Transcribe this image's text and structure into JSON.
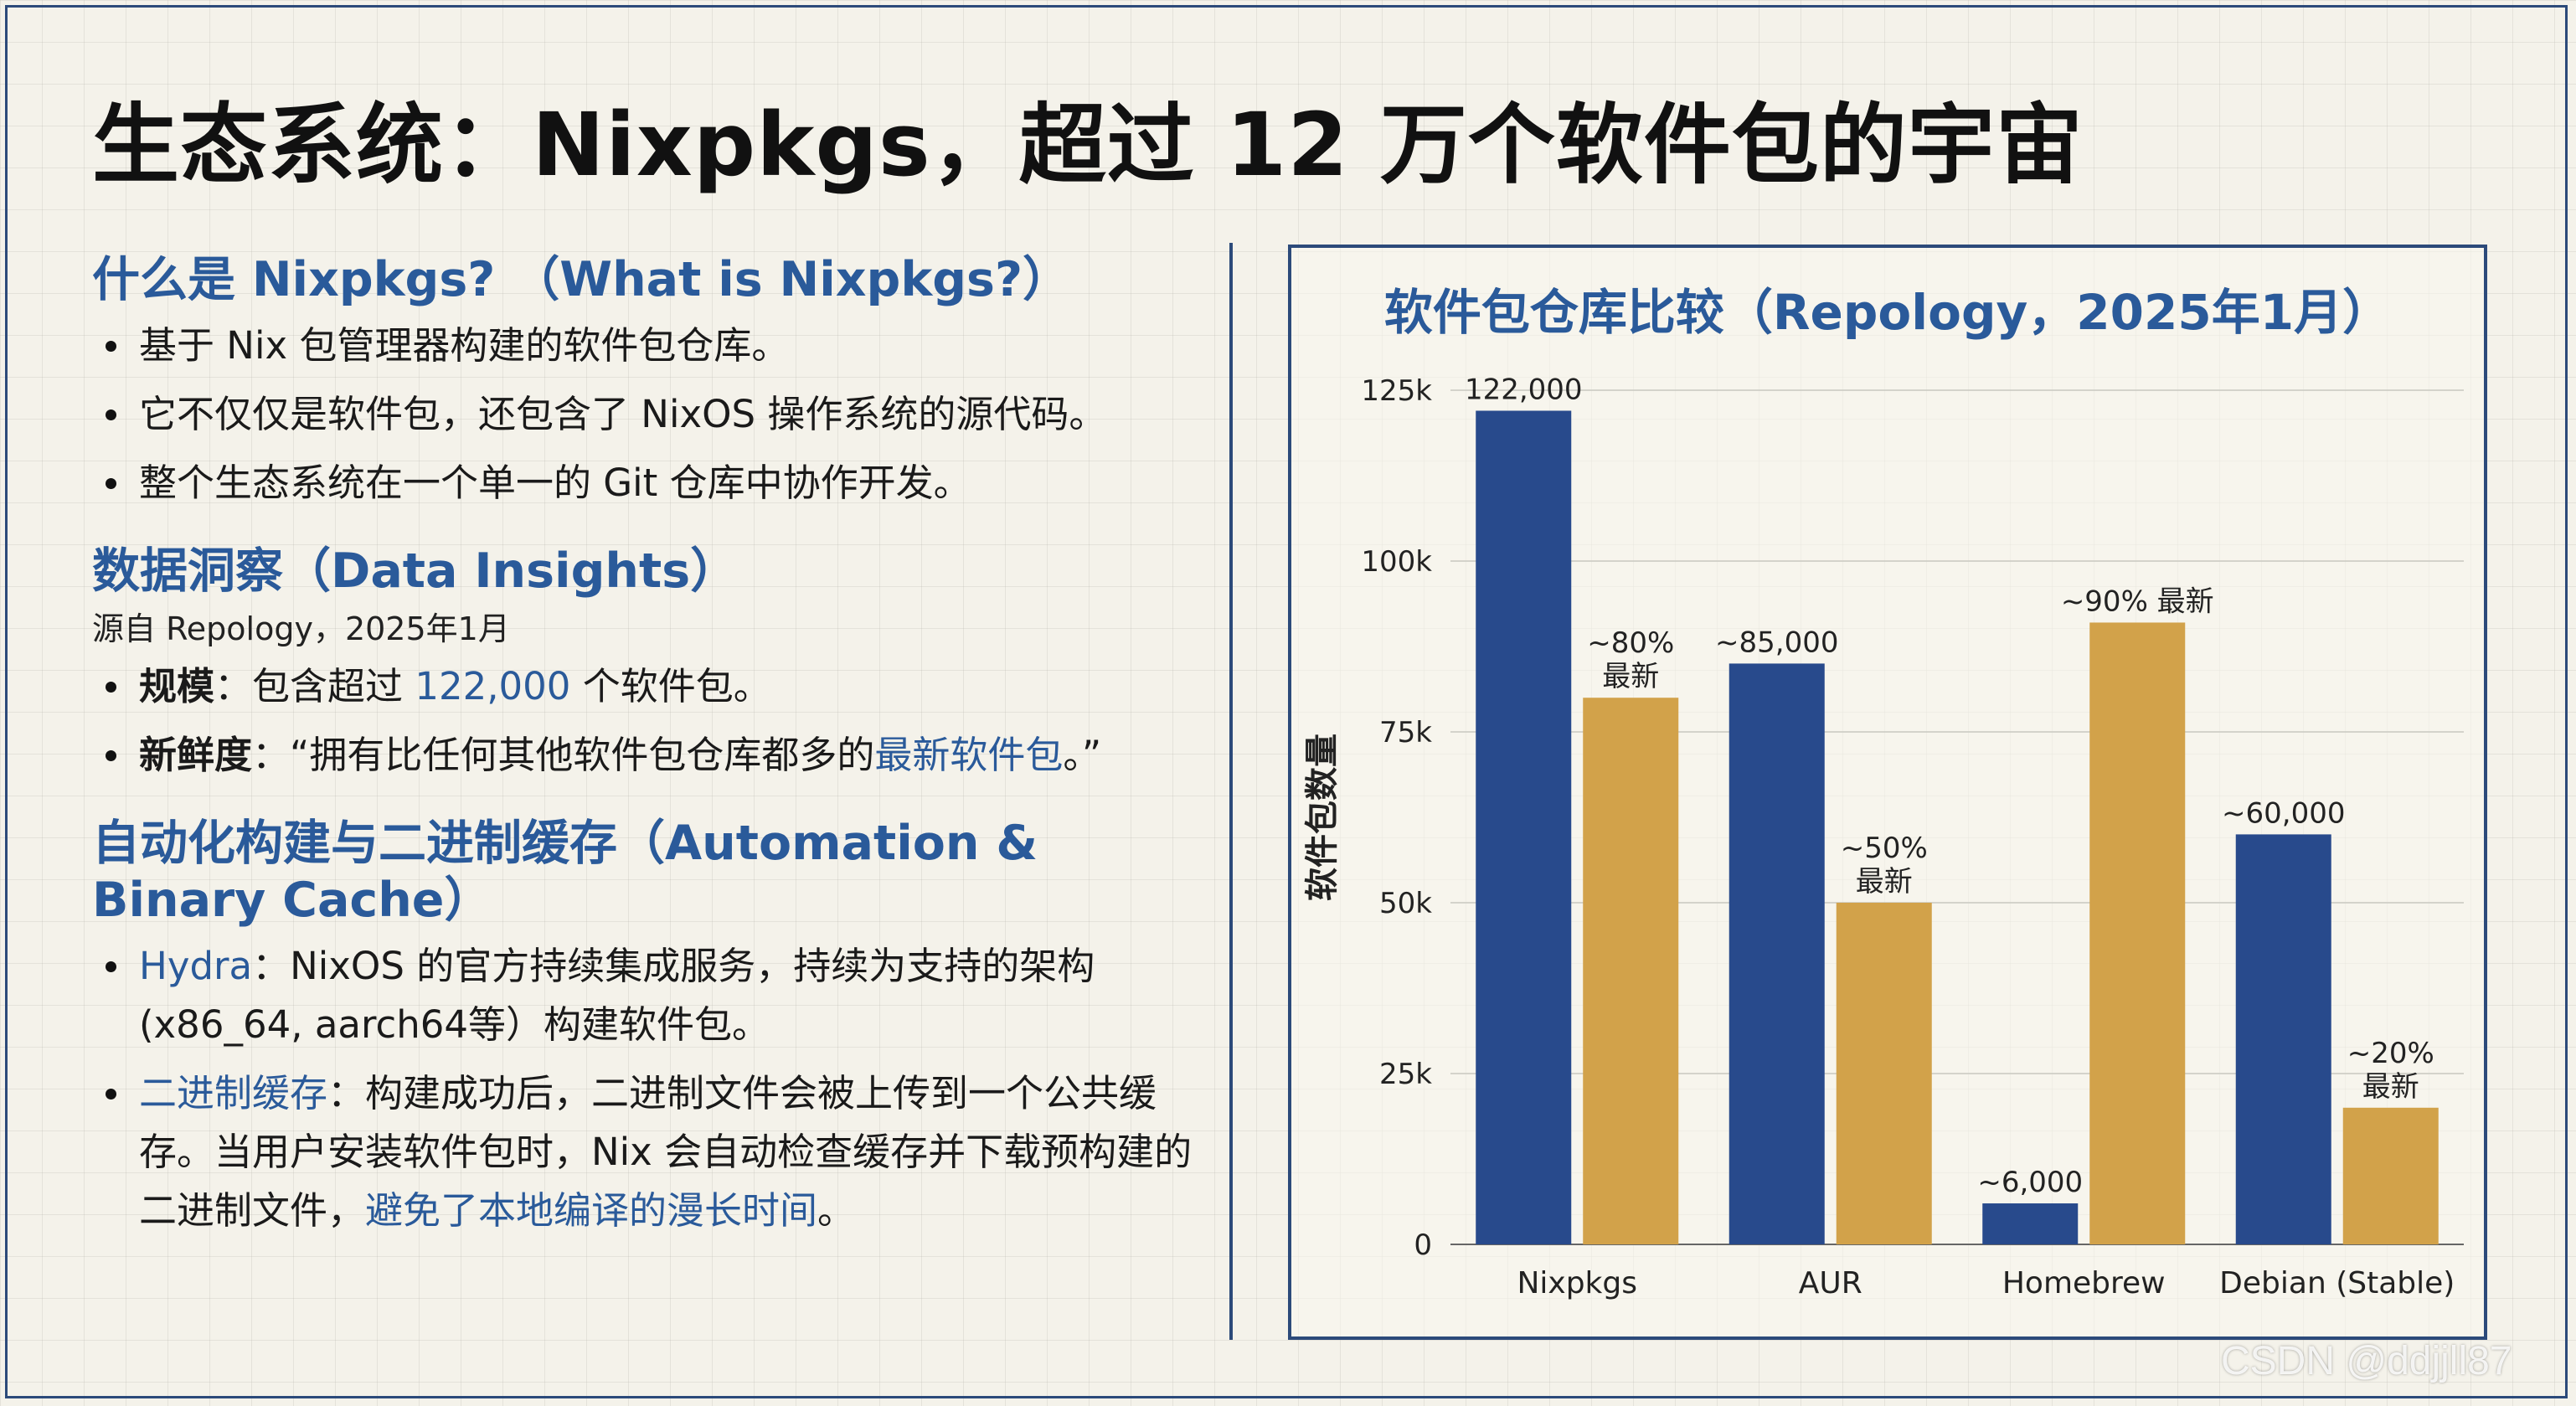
{
  "main_title": "生态系统：Nixpkgs，超过 12 万个软件包的宇宙",
  "sections": {
    "what": {
      "heading": "什么是 Nixpkgs? （What is Nixpkgs?）",
      "bullets": [
        "基于 Nix 包管理器构建的软件包仓库。",
        "它不仅仅是软件包，还包含了 NixOS 操作系统的源代码。",
        "整个生态系统在一个单一的 Git 仓库中协作开发。"
      ]
    },
    "insights": {
      "heading": "数据洞察（Data Insights）",
      "source": "源自 Repology，2025年1月",
      "scale_label": "规模",
      "scale_pre": "：包含超过 ",
      "scale_value": "122,000",
      "scale_post": " 个软件包。",
      "fresh_label": "新鲜度",
      "fresh_pre": "：“拥有比任何其他软件包仓库都多的",
      "fresh_highlight": "最新软件包",
      "fresh_post": "。”"
    },
    "automation": {
      "heading": "自动化构建与二进制缓存（Automation & Binary Cache）",
      "hydra_label": "Hydra",
      "hydra_text": "：NixOS 的官方持续集成服务，持续为支持的架构(x86_64, aarch64等）构建软件包。",
      "cache_label": "二进制缓存",
      "cache_text": "：构建成功后，二进制文件会被上传到一个公共缓存。当用户安装软件包时，Nix 会自动检查缓存并下载预构建的二进制文件，",
      "cache_highlight": "避免了本地编译的漫长时间",
      "cache_end": "。"
    }
  },
  "colors": {
    "accent": "#2a5a9a",
    "bar_blue": "#284a8c",
    "bar_gold": "#d2a24a",
    "frame": "#2c4a7a"
  },
  "chart_data": {
    "type": "bar",
    "title": "软件包仓库比较（Repology，2025年1月）",
    "ylabel": "软件包数量",
    "xlabel": "",
    "categories": [
      "Nixpkgs",
      "AUR",
      "Homebrew",
      "Debian (Stable)"
    ],
    "ylim": [
      0,
      125000
    ],
    "y_ticks": [
      0,
      25000,
      50000,
      75000,
      100000,
      125000
    ],
    "y_tick_labels": [
      "0",
      "25k",
      "50k",
      "75k",
      "100k",
      "125k"
    ],
    "grid": true,
    "series": [
      {
        "values": [
          122000,
          85000,
          6000,
          60000
        ],
        "labels": [
          "122,000",
          "~85,000",
          "~6,000",
          "~60,000"
        ]
      },
      {
        "values": [
          80000,
          50000,
          91000,
          20000
        ],
        "labels": [
          [
            "~80%",
            "最新"
          ],
          [
            "~50%",
            "最新"
          ],
          [
            "~90% 最新"
          ],
          [
            "~20%",
            "最新"
          ]
        ]
      }
    ]
  },
  "watermark": "CSDN @ddjjll87"
}
